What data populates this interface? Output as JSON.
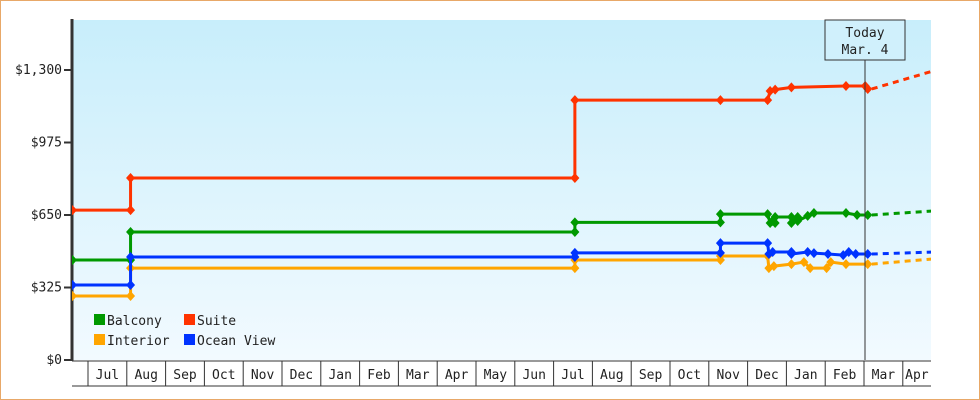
{
  "chart_data": {
    "type": "line",
    "step": true,
    "ylim": [
      0,
      1300
    ],
    "yticks": [
      "$0",
      "$325",
      "$650",
      "$975",
      "$1,300"
    ],
    "ytick_values": [
      0,
      325,
      650,
      975,
      1300
    ],
    "xticks": [
      "",
      "Jul",
      "Aug",
      "Sep",
      "Oct",
      "Nov",
      "Dec",
      "Jan",
      "Feb",
      "Mar",
      "Apr",
      "May",
      "Jun",
      "Jul",
      "Aug",
      "Sep",
      "Oct",
      "Nov",
      "Dec",
      "Jan",
      "Feb",
      "Mar",
      "Apr"
    ],
    "today": {
      "label": "Today",
      "date_label": "Mar. 4",
      "date": "3/4"
    },
    "legend_position": "bottom-left",
    "grid": false,
    "series": [
      {
        "name": "Balcony",
        "color": "#009900",
        "points": [
          [
            "6/19",
            448
          ],
          [
            "8/4",
            448
          ],
          [
            "8/4",
            574
          ],
          [
            "7/18",
            574
          ],
          [
            "7/18",
            617
          ],
          [
            "11/10",
            617
          ],
          [
            "11/10",
            654
          ],
          [
            "12/17",
            654
          ],
          [
            "12/19",
            614
          ],
          [
            "12/21",
            623
          ],
          [
            "12/23",
            614
          ],
          [
            "12/23",
            641
          ],
          [
            "1/5",
            641
          ],
          [
            "1/5",
            614
          ],
          [
            "1/10",
            641
          ],
          [
            "1/10",
            623
          ],
          [
            "1/18",
            646
          ],
          [
            "1/23",
            659
          ],
          [
            "2/16",
            659
          ],
          [
            "2/24",
            650
          ],
          [
            "3/4",
            650
          ]
        ],
        "projection": [
          [
            "3/4",
            650
          ],
          [
            "4/24",
            668
          ]
        ]
      },
      {
        "name": "Suite",
        "color": "#ff3300",
        "points": [
          [
            "6/19",
            672
          ],
          [
            "8/4",
            672
          ],
          [
            "8/4",
            816
          ],
          [
            "7/18",
            816
          ],
          [
            "7/18",
            1165
          ],
          [
            "11/10",
            1165
          ],
          [
            "12/17",
            1165
          ],
          [
            "12/19",
            1206
          ],
          [
            "12/23",
            1212
          ],
          [
            "1/5",
            1222
          ],
          [
            "2/16",
            1228
          ],
          [
            "3/2",
            1228
          ],
          [
            "3/4",
            1215
          ]
        ],
        "projection": [
          [
            "3/4",
            1215
          ],
          [
            "4/24",
            1295
          ]
        ]
      },
      {
        "name": "Interior",
        "color": "#ffa500",
        "points": [
          [
            "6/19",
            287
          ],
          [
            "8/4",
            287
          ],
          [
            "8/4",
            412
          ],
          [
            "7/18",
            412
          ],
          [
            "7/18",
            448
          ],
          [
            "11/10",
            448
          ],
          [
            "11/10",
            466
          ],
          [
            "12/17",
            466
          ],
          [
            "12/18",
            412
          ],
          [
            "12/22",
            421
          ],
          [
            "1/5",
            430
          ],
          [
            "1/15",
            439
          ],
          [
            "1/20",
            412
          ],
          [
            "2/2",
            412
          ],
          [
            "2/5",
            439
          ],
          [
            "2/16",
            430
          ],
          [
            "3/4",
            430
          ]
        ],
        "projection": [
          [
            "3/4",
            430
          ],
          [
            "4/24",
            453
          ]
        ]
      },
      {
        "name": "Ocean View",
        "color": "#0033ff",
        "points": [
          [
            "6/19",
            336
          ],
          [
            "8/4",
            336
          ],
          [
            "8/4",
            462
          ],
          [
            "7/18",
            462
          ],
          [
            "7/18",
            480
          ],
          [
            "11/10",
            480
          ],
          [
            "11/10",
            524
          ],
          [
            "12/17",
            524
          ],
          [
            "12/18",
            475
          ],
          [
            "12/21",
            484
          ],
          [
            "1/5",
            484
          ],
          [
            "1/5",
            475
          ],
          [
            "1/18",
            484
          ],
          [
            "1/23",
            479
          ],
          [
            "2/3",
            475
          ],
          [
            "2/14",
            470
          ],
          [
            "2/18",
            484
          ],
          [
            "2/23",
            475
          ],
          [
            "3/4",
            475
          ]
        ],
        "projection": [
          [
            "3/4",
            475
          ],
          [
            "4/24",
            484
          ]
        ]
      }
    ]
  }
}
